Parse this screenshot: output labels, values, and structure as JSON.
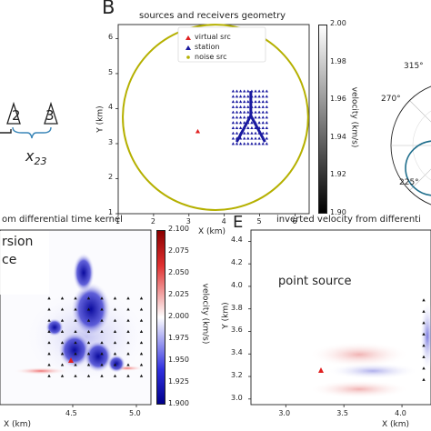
{
  "panel_a": {
    "node_2": "2",
    "node_3": "3",
    "distance_label": "x",
    "distance_sub": "23"
  },
  "panel_b": {
    "letter": "B",
    "title": "sources and receivers geometry",
    "xlabel": "X (km)",
    "ylabel": "Y (km)",
    "x_ticks": [
      "1",
      "2",
      "3",
      "4",
      "5",
      "6"
    ],
    "y_ticks": [
      "1",
      "2",
      "3",
      "4",
      "5",
      "6"
    ],
    "legend": [
      "virtual src",
      "station",
      "noise src"
    ],
    "colorbar_label": "velocity (km/s)",
    "colorbar_ticks": [
      "2.00",
      "1.98",
      "1.96",
      "1.94",
      "1.92",
      "1.90"
    ]
  },
  "panel_c": {
    "polar_ticks": [
      "315°",
      "270°",
      "225°"
    ]
  },
  "panel_d": {
    "title": "om differential time kernel",
    "overlay_line1": "rsion",
    "overlay_line2": "ce",
    "xlabel": "X (km)",
    "x_ticks": [
      "4.5",
      "5.0"
    ],
    "colorbar_label": "velocity (km/s)",
    "colorbar_ticks": [
      "2.100",
      "2.075",
      "2.050",
      "2.025",
      "2.000",
      "1.975",
      "1.950",
      "1.925",
      "1.900"
    ]
  },
  "panel_e": {
    "letter": "E",
    "title": "inverted velocity from differenti",
    "label": "point source",
    "xlabel": "X (km)",
    "ylabel": "Y (km)",
    "x_ticks": [
      "3.0",
      "3.5",
      "4.0"
    ],
    "y_ticks": [
      "4.4",
      "4.2",
      "4.0",
      "3.8",
      "3.6",
      "3.4",
      "3.2",
      "3.0"
    ],
    "x_tick_partial": "4"
  },
  "chart_data": [
    {
      "type": "scatter",
      "title": "sources and receivers geometry",
      "xlabel": "X (km)",
      "ylabel": "Y (km)",
      "xlim": [
        1,
        6.4
      ],
      "ylim": [
        1,
        6.4
      ],
      "series": [
        {
          "name": "virtual src",
          "color": "#e02020",
          "points": [
            [
              3.25,
              3.35
            ]
          ]
        },
        {
          "name": "station",
          "color": "#1a1aa0",
          "region": {
            "x": [
              4.25,
              5.2
            ],
            "y": [
              3.0,
              4.5
            ],
            "grid": [
              10,
              11
            ]
          }
        },
        {
          "name": "noise src",
          "color": "#b5b000",
          "circle": {
            "center": [
              3.75,
              3.75
            ],
            "radius": 2.62
          }
        }
      ],
      "colorbar": {
        "label": "velocity (km/s)",
        "range": [
          1.9,
          2.0
        ]
      }
    },
    {
      "type": "heatmap",
      "title": "om differential time kernel",
      "xlabel": "X (km)",
      "colorbar": {
        "label": "velocity (km/s)",
        "range": [
          1.9,
          2.1
        ],
        "colors": [
          "#00008b",
          "#ffffff",
          "#c00000"
        ]
      }
    },
    {
      "type": "heatmap",
      "title": "inverted velocity from differenti",
      "xlabel": "X (km)",
      "ylabel": "Y (km)",
      "xlim": [
        2.7,
        4.25
      ],
      "ylim": [
        2.95,
        4.5
      ]
    }
  ],
  "colors": {
    "noise_src": "#b5b000",
    "station": "#1a1aa0",
    "virtual_src": "#e02020",
    "kernel_blue": "#0a0a9c",
    "kernel_red": "#d01010"
  }
}
